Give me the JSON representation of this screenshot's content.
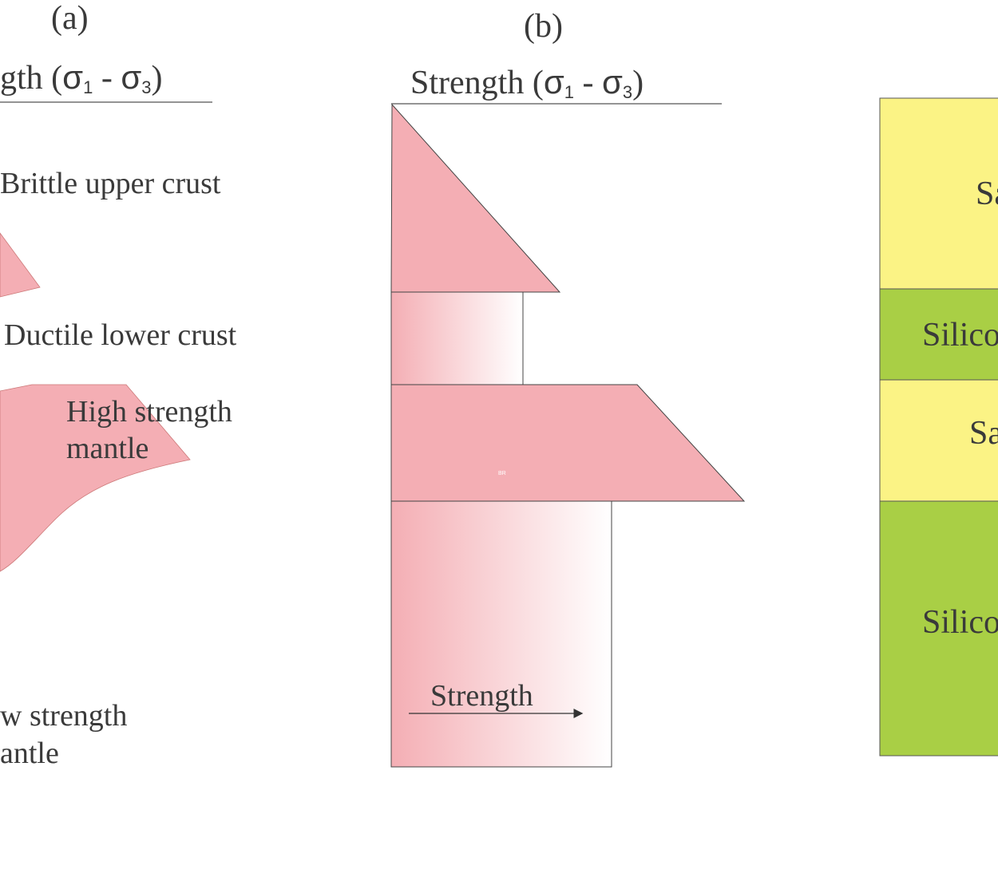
{
  "panel_a": {
    "label": "(a)",
    "axis_title": {
      "prefix": "gth (",
      "sigma": "σ",
      "sub1": "1",
      "mid": " - ",
      "sub3": "3",
      "suffix": ")"
    },
    "brittle_label": "Brittle upper crust",
    "ductile_label": "Ductile lower crust",
    "high_mantle_line1": "High strength",
    "high_mantle_line2": "mantle",
    "low_mantle_line1": "w strength",
    "low_mantle_line2": "antle"
  },
  "panel_b": {
    "label": "(b)",
    "axis_title": {
      "prefix": "Strength (",
      "sigma": "σ",
      "sub1": "1",
      "mid": " - ",
      "sub3": "3",
      "suffix": ")"
    },
    "small_mark": "BR",
    "arrow_label": "Strength"
  },
  "panel_c": {
    "layers": [
      {
        "label": "Sa",
        "color": "#fbf385"
      },
      {
        "label": "Silico",
        "color": "#a9cf45"
      },
      {
        "label": "Sa",
        "color": "#fbf385"
      },
      {
        "label": "Silico",
        "color": "#a9cf45"
      }
    ]
  },
  "colors": {
    "pink": "#f4aeb4",
    "sand": "#fbf385",
    "silicone": "#a9cf45",
    "ink": "#3a3a3a"
  }
}
